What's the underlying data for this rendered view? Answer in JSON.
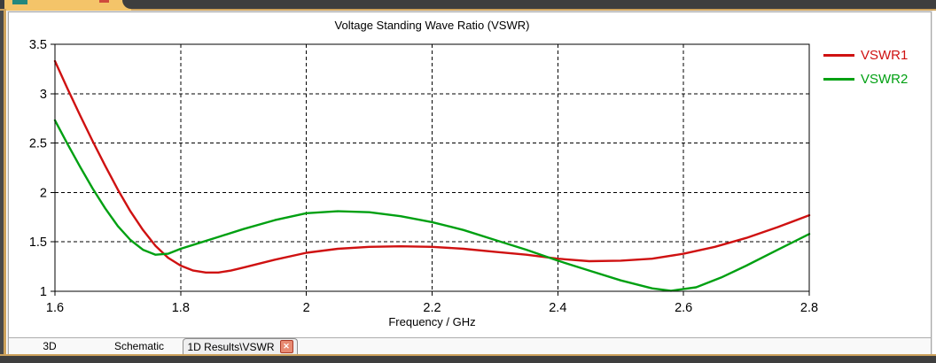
{
  "chart_data": {
    "type": "line",
    "title": "Voltage Standing Wave Ratio (VSWR)",
    "xlabel": "Frequency / GHz",
    "ylabel": "",
    "xlim": [
      1.6,
      2.8
    ],
    "ylim": [
      1,
      3.5
    ],
    "grid": true,
    "legend_position": "top-right-outside",
    "xticks": {
      "values": [
        1.6,
        1.8,
        2.0,
        2.2,
        2.4,
        2.6,
        2.8
      ],
      "labels": [
        "1.6",
        "1.8",
        "2",
        "2.2",
        "2.4",
        "2.6",
        "2.8"
      ]
    },
    "yticks": {
      "values": [
        1,
        1.5,
        2,
        2.5,
        3,
        3.5
      ],
      "labels": [
        "1",
        "1.5",
        "2",
        "2.5",
        "3",
        "3.5"
      ]
    },
    "series": [
      {
        "name": "VSWR1",
        "color": "#cf1111",
        "points": [
          [
            1.6,
            3.33
          ],
          [
            1.62,
            3.05
          ],
          [
            1.64,
            2.78
          ],
          [
            1.66,
            2.52
          ],
          [
            1.68,
            2.27
          ],
          [
            1.7,
            2.03
          ],
          [
            1.72,
            1.81
          ],
          [
            1.74,
            1.62
          ],
          [
            1.76,
            1.46
          ],
          [
            1.78,
            1.34
          ],
          [
            1.8,
            1.26
          ],
          [
            1.82,
            1.21
          ],
          [
            1.84,
            1.19
          ],
          [
            1.86,
            1.19
          ],
          [
            1.88,
            1.21
          ],
          [
            1.9,
            1.24
          ],
          [
            1.95,
            1.32
          ],
          [
            2.0,
            1.39
          ],
          [
            2.05,
            1.43
          ],
          [
            2.1,
            1.45
          ],
          [
            2.15,
            1.455
          ],
          [
            2.2,
            1.45
          ],
          [
            2.25,
            1.43
          ],
          [
            2.3,
            1.4
          ],
          [
            2.35,
            1.37
          ],
          [
            2.4,
            1.33
          ],
          [
            2.45,
            1.305
          ],
          [
            2.5,
            1.31
          ],
          [
            2.55,
            1.33
          ],
          [
            2.6,
            1.38
          ],
          [
            2.65,
            1.45
          ],
          [
            2.7,
            1.54
          ],
          [
            2.75,
            1.65
          ],
          [
            2.8,
            1.77
          ]
        ]
      },
      {
        "name": "VSWR2",
        "color": "#00a012",
        "points": [
          [
            1.6,
            2.73
          ],
          [
            1.62,
            2.49
          ],
          [
            1.64,
            2.26
          ],
          [
            1.66,
            2.04
          ],
          [
            1.68,
            1.84
          ],
          [
            1.7,
            1.66
          ],
          [
            1.72,
            1.52
          ],
          [
            1.74,
            1.42
          ],
          [
            1.76,
            1.37
          ],
          [
            1.78,
            1.38
          ],
          [
            1.8,
            1.43
          ],
          [
            1.83,
            1.49
          ],
          [
            1.86,
            1.55
          ],
          [
            1.9,
            1.63
          ],
          [
            1.95,
            1.72
          ],
          [
            2.0,
            1.79
          ],
          [
            2.05,
            1.81
          ],
          [
            2.1,
            1.8
          ],
          [
            2.15,
            1.76
          ],
          [
            2.2,
            1.7
          ],
          [
            2.25,
            1.62
          ],
          [
            2.3,
            1.52
          ],
          [
            2.35,
            1.42
          ],
          [
            2.4,
            1.31
          ],
          [
            2.45,
            1.21
          ],
          [
            2.5,
            1.11
          ],
          [
            2.55,
            1.03
          ],
          [
            2.58,
            1.005
          ],
          [
            2.62,
            1.04
          ],
          [
            2.66,
            1.14
          ],
          [
            2.7,
            1.26
          ],
          [
            2.75,
            1.42
          ],
          [
            2.8,
            1.58
          ]
        ]
      }
    ]
  },
  "tabs": {
    "items": [
      {
        "label": "3D",
        "active": false
      },
      {
        "label": "Schematic",
        "active": false
      },
      {
        "label": "1D Results\\VSWR",
        "active": true,
        "closable": true
      }
    ]
  },
  "close_icon": {
    "glyph": "✕"
  },
  "colors": {
    "ribbon_tan": "#f4c469",
    "accent_line": "#cda25c",
    "strip_dark": "#3e3e3e",
    "teal_chip": "#23877d",
    "red_chip": "#cf4a3c",
    "close_button_bg": "#e78a72",
    "close_button_border": "#ac3a28"
  }
}
